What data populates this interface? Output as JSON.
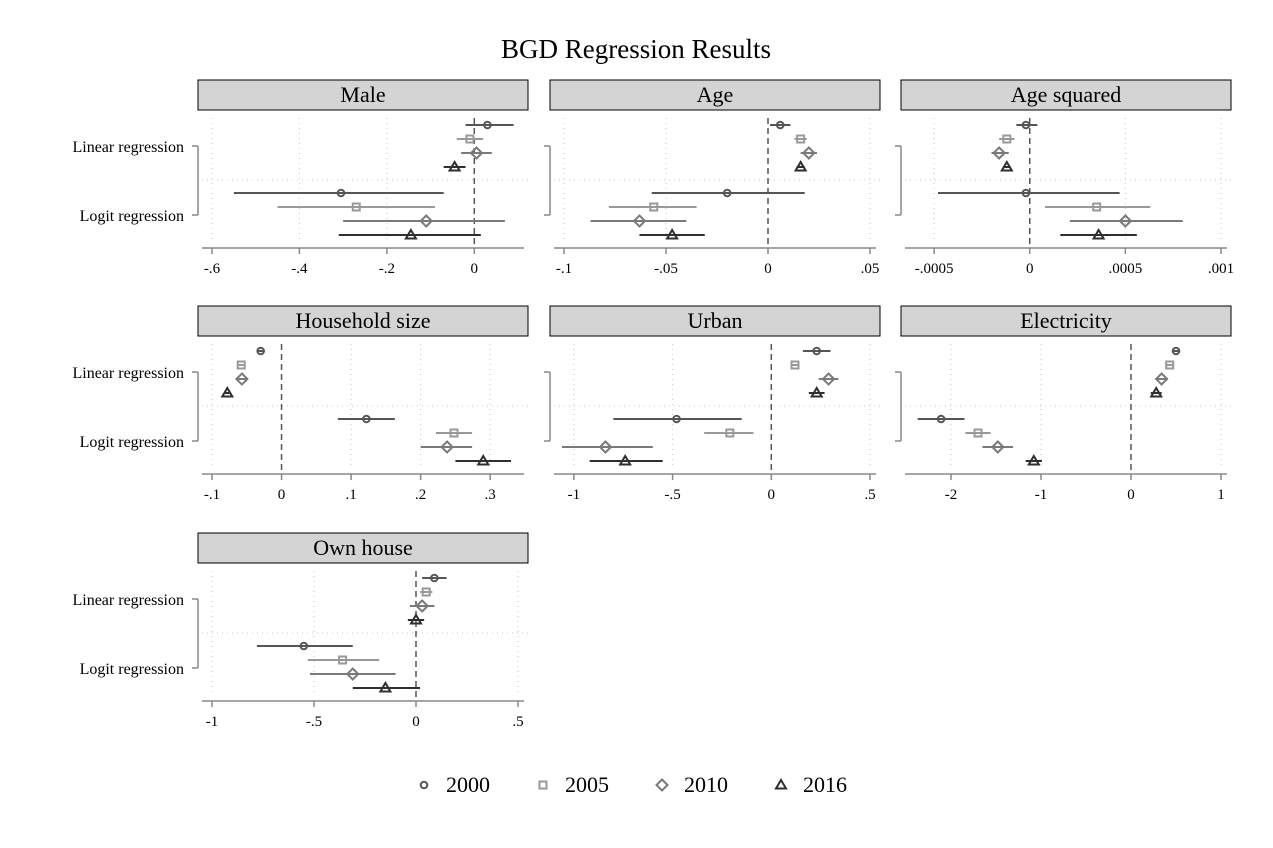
{
  "chart_data": {
    "type": "scatter",
    "title": "BGD Regression Results",
    "row_labels": [
      "Linear regression",
      "Logit regression"
    ],
    "series": [
      {
        "name": "2000",
        "marker": "circle",
        "color": "#555555"
      },
      {
        "name": "2005",
        "marker": "square",
        "color": "#999999"
      },
      {
        "name": "2010",
        "marker": "diamond",
        "color": "#7a7a7a"
      },
      {
        "name": "2016",
        "marker": "triangle",
        "color": "#2f2f2f"
      }
    ],
    "legend_position": "bottom",
    "reference_line": 0,
    "panels": [
      {
        "title": "Male",
        "xlim": [
          -0.6,
          0.1
        ],
        "ticks": [
          -0.6,
          -0.4,
          -0.2,
          0
        ],
        "tick_labels": [
          "-.6",
          "-.4",
          "-.2",
          "0"
        ],
        "linear": [
          [
            0.03,
            -0.02,
            0.09
          ],
          [
            -0.01,
            -0.04,
            0.02
          ],
          [
            0.005,
            -0.03,
            0.04
          ],
          [
            -0.045,
            -0.07,
            -0.02
          ]
        ],
        "logit": [
          [
            -0.305,
            -0.55,
            -0.07
          ],
          [
            -0.27,
            -0.45,
            -0.09
          ],
          [
            -0.11,
            -0.3,
            0.07
          ],
          [
            -0.145,
            -0.31,
            0.015
          ]
        ]
      },
      {
        "title": "Age",
        "xlim": [
          -0.1,
          0.05
        ],
        "ticks": [
          -0.1,
          -0.05,
          0,
          0.05
        ],
        "tick_labels": [
          "-.1",
          "-.05",
          "0",
          ".05"
        ],
        "linear": [
          [
            0.006,
            0.001,
            0.011
          ],
          [
            0.016,
            0.013,
            0.019
          ],
          [
            0.02,
            0.016,
            0.024
          ],
          [
            0.016,
            0.014,
            0.018
          ]
        ],
        "logit": [
          [
            -0.02,
            -0.057,
            0.018
          ],
          [
            -0.056,
            -0.078,
            -0.035
          ],
          [
            -0.063,
            -0.087,
            -0.04
          ],
          [
            -0.047,
            -0.063,
            -0.031
          ]
        ]
      },
      {
        "title": "Age squared",
        "xlim": [
          -0.0006,
          0.001
        ],
        "ticks": [
          -0.0005,
          0,
          0.0005,
          0.001
        ],
        "tick_labels": [
          "-.0005",
          "0",
          ".0005",
          ".001"
        ],
        "linear": [
          [
            -2e-05,
            -7e-05,
            4e-05
          ],
          [
            -0.00012,
            -0.00016,
            -8e-05
          ],
          [
            -0.00016,
            -0.0002,
            -0.00011
          ],
          [
            -0.00012,
            -0.00014,
            -0.0001
          ]
        ],
        "logit": [
          [
            -2e-05,
            -0.00048,
            0.00047
          ],
          [
            0.00035,
            8e-05,
            0.00063
          ],
          [
            0.0005,
            0.00021,
            0.0008
          ],
          [
            0.00036,
            0.00016,
            0.00056
          ]
        ]
      },
      {
        "title": "Household size",
        "xlim": [
          -0.1,
          0.34
        ],
        "ticks": [
          -0.1,
          0,
          0.1,
          0.2,
          0.3
        ],
        "tick_labels": [
          "-.1",
          "0",
          ".1",
          ".2",
          ".3"
        ],
        "linear": [
          [
            -0.03,
            -0.035,
            -0.025
          ],
          [
            -0.058,
            -0.062,
            -0.054
          ],
          [
            -0.057,
            -0.064,
            -0.05
          ],
          [
            -0.078,
            -0.083,
            -0.073
          ]
        ],
        "logit": [
          [
            0.122,
            0.081,
            0.163
          ],
          [
            0.248,
            0.222,
            0.274
          ],
          [
            0.238,
            0.2,
            0.274
          ],
          [
            0.29,
            0.25,
            0.33
          ]
        ]
      },
      {
        "title": "Urban",
        "xlim": [
          -1.05,
          0.5
        ],
        "ticks": [
          -1,
          -0.5,
          0,
          0.5
        ],
        "tick_labels": [
          "-1",
          "-.5",
          "0",
          ".5"
        ],
        "linear": [
          [
            0.23,
            0.16,
            0.3
          ],
          [
            0.12,
            0.1,
            0.14
          ],
          [
            0.29,
            0.24,
            0.34
          ],
          [
            0.23,
            0.19,
            0.27
          ]
        ],
        "logit": [
          [
            -0.48,
            -0.8,
            -0.15
          ],
          [
            -0.21,
            -0.34,
            -0.09
          ],
          [
            -0.84,
            -1.06,
            -0.6
          ],
          [
            -0.74,
            -0.92,
            -0.55
          ]
        ]
      },
      {
        "title": "Electricity",
        "xlim": [
          -2.4,
          1
        ],
        "ticks": [
          -2,
          -1,
          0,
          1
        ],
        "tick_labels": [
          "-2",
          "-1",
          "0",
          "1"
        ],
        "linear": [
          [
            0.5,
            0.46,
            0.54
          ],
          [
            0.43,
            0.38,
            0.48
          ],
          [
            0.34,
            0.27,
            0.41
          ],
          [
            0.28,
            0.22,
            0.34
          ]
        ],
        "logit": [
          [
            -2.11,
            -2.37,
            -1.85
          ],
          [
            -1.7,
            -1.84,
            -1.56
          ],
          [
            -1.48,
            -1.65,
            -1.31
          ],
          [
            -1.08,
            -1.17,
            -0.99
          ]
        ]
      },
      {
        "title": "Own house",
        "xlim": [
          -1,
          0.5
        ],
        "ticks": [
          -1,
          -0.5,
          0,
          0.5
        ],
        "tick_labels": [
          "-1",
          "-.5",
          "0",
          ".5"
        ],
        "linear": [
          [
            0.09,
            0.03,
            0.15
          ],
          [
            0.05,
            0.02,
            0.08
          ],
          [
            0.03,
            -0.03,
            0.09
          ],
          [
            0,
            -0.04,
            0.04
          ]
        ],
        "logit": [
          [
            -0.55,
            -0.78,
            -0.31
          ],
          [
            -0.36,
            -0.53,
            -0.18
          ],
          [
            -0.31,
            -0.52,
            -0.1
          ],
          [
            -0.15,
            -0.31,
            0.02
          ]
        ]
      }
    ]
  }
}
